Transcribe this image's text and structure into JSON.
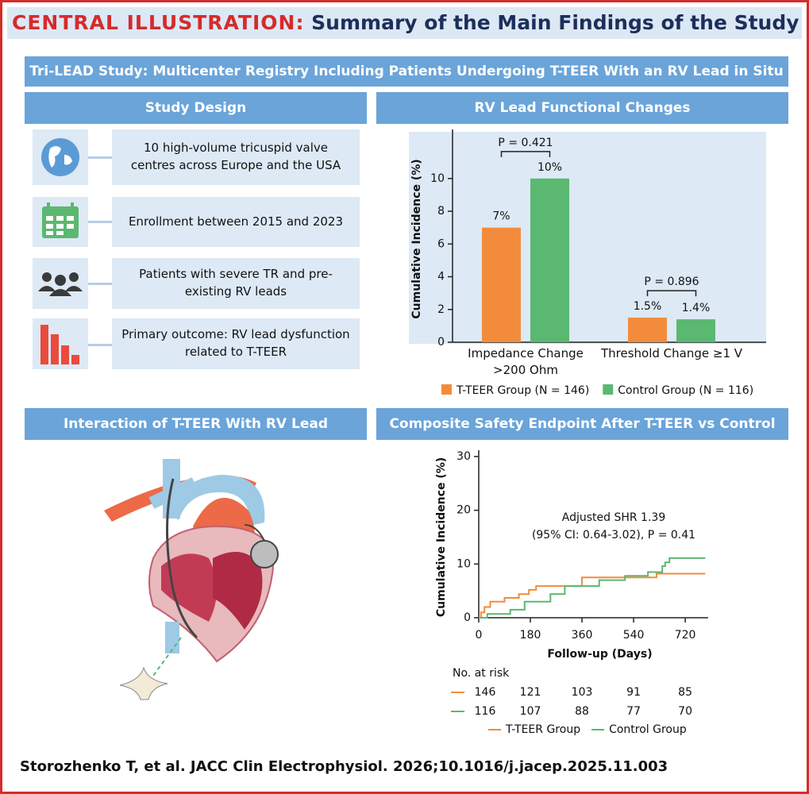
{
  "header": {
    "label": "CENTRAL ILLUSTRATION:",
    "title": "Summary of the Main Findings of the Study"
  },
  "study_title": "Tri-LEAD Study: Multicenter Registry Including Patients Undergoing T-TEER With an RV Lead in Situ",
  "sections": [
    "Study Design",
    "RV Lead Functional Changes",
    "Interaction of T-TEER With RV Lead",
    "Composite Safety Endpoint After T-TEER vs Control"
  ],
  "design_items": [
    "10 high-volume tricuspid valve centres across Europe and the USA",
    "Enrollment between 2015 and 2023",
    "Patients with severe TR and pre-existing RV leads",
    "Primary outcome: RV lead dysfunction related to T-TEER"
  ],
  "chart_data": [
    {
      "type": "bar",
      "y_label": "Cumulative Incidence (%)",
      "categories": [
        "Impedance Change >200 Ohm",
        "Threshold Change ≥1 V"
      ],
      "series": [
        {
          "name": "T-TEER Group (N = 146)",
          "color": "#f28c3c",
          "values": [
            7,
            1.5
          ],
          "value_labels": [
            "7%",
            "1.5%"
          ]
        },
        {
          "name": "Control Group (N = 116)",
          "color": "#5bb870",
          "values": [
            10,
            1.4
          ],
          "value_labels": [
            "10%",
            "1.4%"
          ]
        }
      ],
      "annotations": [
        "P = 0.421",
        "P = 0.896"
      ],
      "ylim": [
        0,
        13
      ],
      "yticks": [
        0,
        2,
        4,
        6,
        8,
        10
      ],
      "legend": "bottom",
      "background": "#dde9f5"
    },
    {
      "type": "line",
      "x_label": "Follow-up (Days)",
      "y_label": "Cumulative Incidence (%)",
      "annotations": [
        "Adjusted SHR 1.39",
        "(95% CI: 0.64-3.02), P = 0.41"
      ],
      "series": [
        {
          "name": "T-TEER Group",
          "color": "#f28c3c",
          "x": [
            0,
            8,
            8,
            20,
            20,
            40,
            40,
            90,
            90,
            140,
            140,
            175,
            175,
            200,
            200,
            360,
            360,
            620,
            620,
            790
          ],
          "values": [
            0,
            0,
            1,
            1,
            2,
            2,
            3,
            3,
            3.7,
            3.7,
            4.4,
            4.4,
            5.2,
            5.2,
            5.9,
            5.9,
            7.5,
            7.5,
            8.2,
            8.2
          ]
        },
        {
          "name": "Control Group",
          "color": "#5bb870",
          "x": [
            0,
            30,
            30,
            110,
            110,
            160,
            160,
            250,
            250,
            300,
            300,
            420,
            420,
            510,
            510,
            590,
            590,
            640,
            640,
            650,
            650,
            665,
            665,
            790
          ],
          "values": [
            0,
            0,
            0.7,
            0.7,
            1.5,
            1.5,
            3,
            3,
            4.4,
            4.4,
            5.9,
            5.9,
            7,
            7,
            7.8,
            7.8,
            8.5,
            8.5,
            9.6,
            9.6,
            10.3,
            10.3,
            11.1,
            11.1
          ]
        }
      ],
      "xlim": [
        0,
        800
      ],
      "xticks": [
        0,
        180,
        360,
        540,
        720
      ],
      "ylim": [
        0,
        30
      ],
      "yticks": [
        0,
        10,
        20,
        30
      ],
      "legend": "bottom",
      "risk_table": {
        "title": "No. at risk",
        "rows": [
          [
            146,
            121,
            103,
            91,
            85
          ],
          [
            116,
            107,
            88,
            77,
            70
          ]
        ]
      }
    }
  ],
  "citation": "Storozhenko T, et al. JACC Clin Electrophysiol. 2026;10.1016/j.jacep.2025.11.003"
}
